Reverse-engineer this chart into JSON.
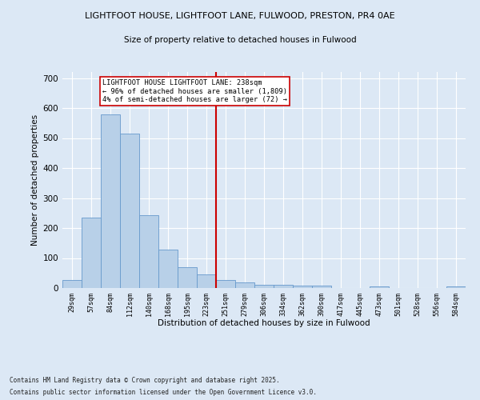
{
  "title1": "LIGHTFOOT HOUSE, LIGHTFOOT LANE, FULWOOD, PRESTON, PR4 0AE",
  "title2": "Size of property relative to detached houses in Fulwood",
  "xlabel": "Distribution of detached houses by size in Fulwood",
  "ylabel": "Number of detached properties",
  "categories": [
    "29sqm",
    "57sqm",
    "84sqm",
    "112sqm",
    "140sqm",
    "168sqm",
    "195sqm",
    "223sqm",
    "251sqm",
    "279sqm",
    "306sqm",
    "334sqm",
    "362sqm",
    "390sqm",
    "417sqm",
    "445sqm",
    "473sqm",
    "501sqm",
    "528sqm",
    "556sqm",
    "584sqm"
  ],
  "values": [
    27,
    235,
    580,
    515,
    243,
    127,
    70,
    46,
    27,
    20,
    10,
    10,
    9,
    9,
    0,
    0,
    6,
    0,
    0,
    0,
    5
  ],
  "bar_color": "#b8d0e8",
  "bar_edge_color": "#6699cc",
  "bg_color": "#dce8f5",
  "vline_color": "#cc0000",
  "annotation_text": "LIGHTFOOT HOUSE LIGHTFOOT LANE: 238sqm\n← 96% of detached houses are smaller (1,809)\n4% of semi-detached houses are larger (72) →",
  "annotation_box_color": "#ffffff",
  "annotation_box_edge": "#cc0000",
  "footnote1": "Contains HM Land Registry data © Crown copyright and database right 2025.",
  "footnote2": "Contains public sector information licensed under the Open Government Licence v3.0.",
  "ylim": [
    0,
    720
  ],
  "yticks": [
    0,
    100,
    200,
    300,
    400,
    500,
    600,
    700
  ]
}
